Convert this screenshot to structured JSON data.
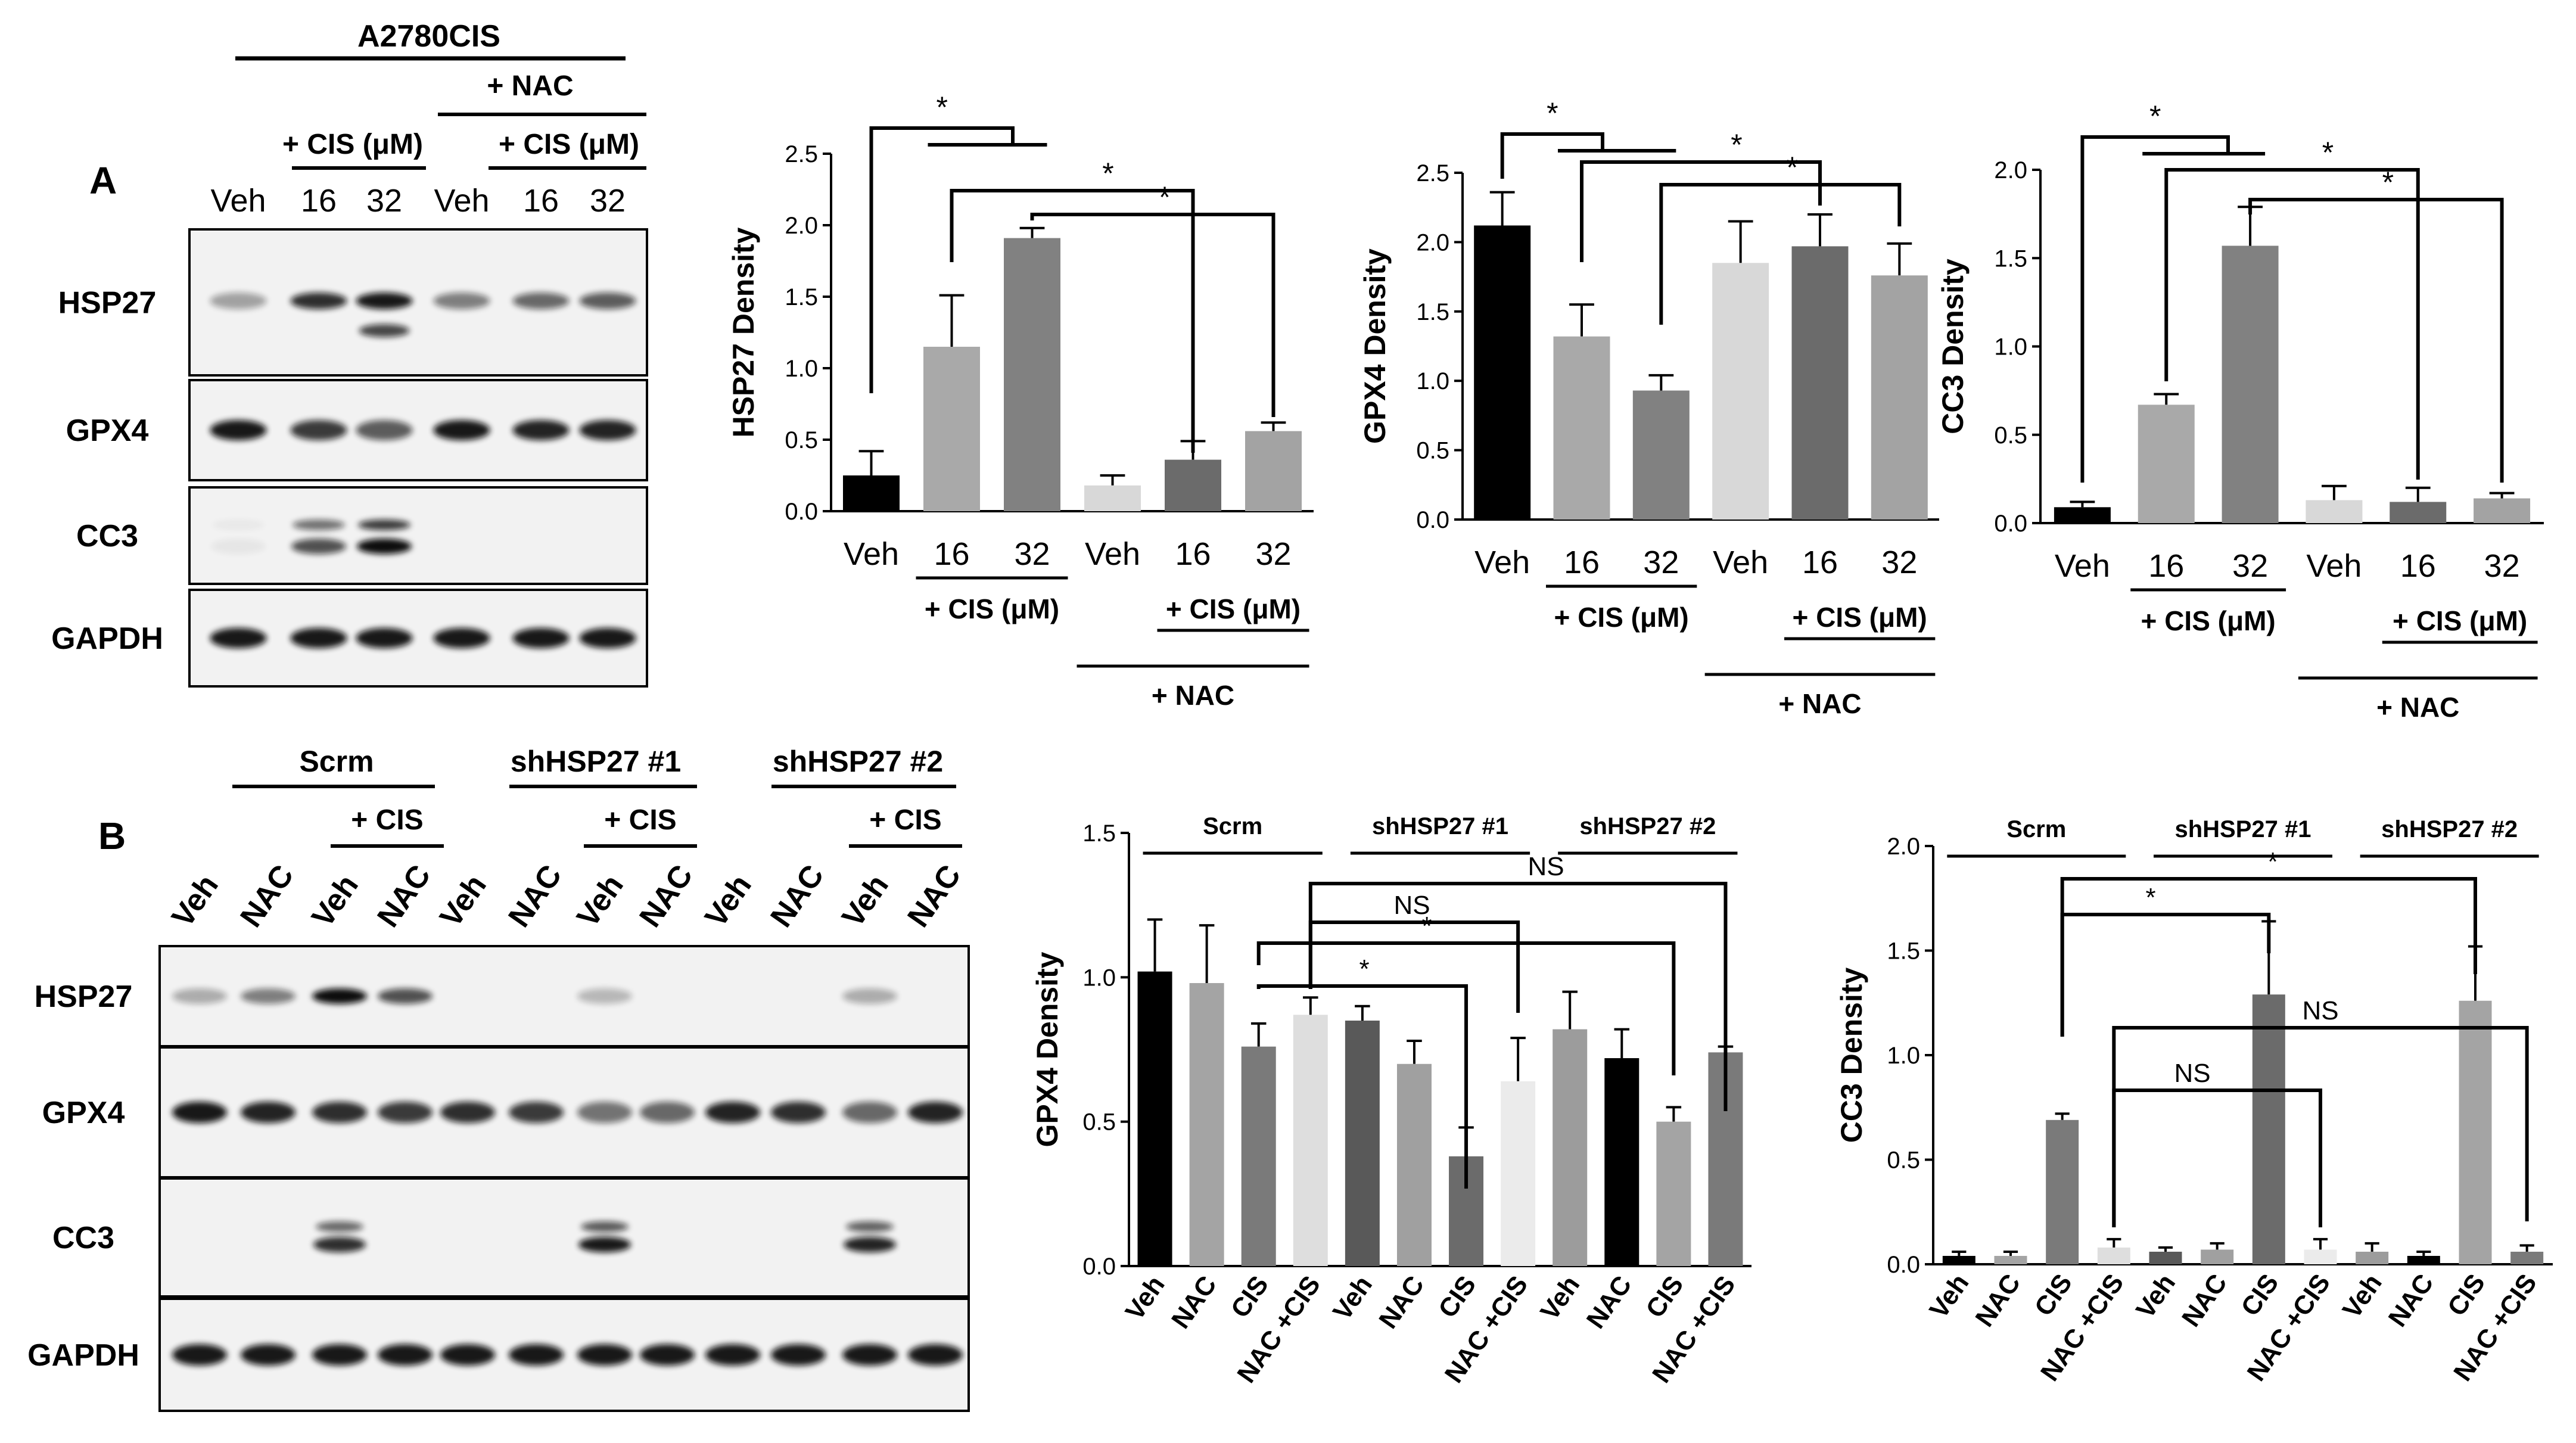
{
  "panel_labels": {
    "a": "A",
    "b": "B"
  },
  "blot_a": {
    "cell_line": "A2780CIS",
    "nac_label": "+ NAC",
    "cis_label": "+ CIS (μM)",
    "lanes": [
      "Veh",
      "16",
      "32",
      "Veh",
      "16",
      "32"
    ],
    "proteins": [
      "HSP27",
      "GPX4",
      "CC3",
      "GAPDH"
    ]
  },
  "blot_b": {
    "groups": [
      "Scrm",
      "shHSP27 #1",
      "shHSP27 #2"
    ],
    "cis_label": "+ CIS",
    "lanes": [
      "Veh",
      "NAC",
      "Veh",
      "NAC",
      "Veh",
      "NAC",
      "Veh",
      "NAC",
      "Veh",
      "NAC",
      "Veh",
      "NAC"
    ],
    "proteins": [
      "HSP27",
      "GPX4",
      "CC3",
      "GAPDH"
    ]
  },
  "chart_data": [
    {
      "type": "bar",
      "title": "",
      "xlabel": "",
      "ylabel": "HSP27 Density",
      "ylim": [
        0,
        2.5
      ],
      "yticks": [
        "0.0",
        "0.5",
        "1.0",
        "1.5",
        "2.0",
        "2.5"
      ],
      "categories": [
        "Veh",
        "16",
        "32",
        "Veh",
        "16",
        "32"
      ],
      "values": [
        0.25,
        1.15,
        1.91,
        0.18,
        0.36,
        0.56
      ],
      "errors": [
        0.17,
        0.36,
        0.07,
        0.07,
        0.13,
        0.06
      ],
      "colors": [
        "#000000",
        "#a9a9a9",
        "#818181",
        "#d8d8d8",
        "#6b6b6b",
        "#a3a3a3"
      ],
      "group_labels": {
        "cis": "+ CIS (μM)",
        "cis2": "+ CIS (μM)",
        "nac": "+ NAC"
      },
      "significance": [
        "*",
        "*",
        "*"
      ]
    },
    {
      "type": "bar",
      "title": "",
      "xlabel": "",
      "ylabel": "GPX4 Density",
      "ylim": [
        0,
        2.5
      ],
      "yticks": [
        "0.0",
        "0.5",
        "1.0",
        "1.5",
        "2.0",
        "2.5"
      ],
      "categories": [
        "Veh",
        "16",
        "32",
        "Veh",
        "16",
        "32"
      ],
      "values": [
        2.12,
        1.32,
        0.93,
        1.85,
        1.97,
        1.76
      ],
      "errors": [
        0.24,
        0.23,
        0.11,
        0.3,
        0.23,
        0.23
      ],
      "colors": [
        "#000000",
        "#a9a9a9",
        "#818181",
        "#d8d8d8",
        "#6b6b6b",
        "#a3a3a3"
      ],
      "group_labels": {
        "cis": "+ CIS (μM)",
        "cis2": "+ CIS (μM)",
        "nac": "+ NAC"
      },
      "significance": [
        "*",
        "*",
        "*"
      ]
    },
    {
      "type": "bar",
      "title": "",
      "xlabel": "",
      "ylabel": "CC3 Density",
      "ylim": [
        0,
        2.0
      ],
      "yticks": [
        "0.0",
        "0.5",
        "1.0",
        "1.5",
        "2.0"
      ],
      "categories": [
        "Veh",
        "16",
        "32",
        "Veh",
        "16",
        "32"
      ],
      "values": [
        0.09,
        0.67,
        1.57,
        0.13,
        0.12,
        0.14
      ],
      "errors": [
        0.03,
        0.06,
        0.22,
        0.08,
        0.08,
        0.03
      ],
      "colors": [
        "#000000",
        "#a9a9a9",
        "#818181",
        "#d8d8d8",
        "#6b6b6b",
        "#a3a3a3"
      ],
      "group_labels": {
        "cis": "+ CIS (μM)",
        "cis2": "+ CIS (μM)",
        "nac": "+ NAC"
      },
      "significance": [
        "*",
        "*",
        "*"
      ]
    },
    {
      "type": "bar",
      "title": "",
      "xlabel": "",
      "ylabel": "GPX4 Density",
      "ylim": [
        0,
        1.5
      ],
      "yticks": [
        "0.0",
        "0.5",
        "1.0",
        "1.5"
      ],
      "categories": [
        "Veh",
        "NAC",
        "CIS",
        "NAC +CIS",
        "Veh",
        "NAC",
        "CIS",
        "NAC +CIS",
        "Veh",
        "NAC",
        "CIS",
        "NAC +CIS"
      ],
      "groups": [
        "Scrm",
        "shHSP27 #1",
        "shHSP27 #2"
      ],
      "values": [
        1.02,
        0.98,
        0.76,
        0.87,
        0.85,
        0.7,
        0.38,
        0.64,
        0.82,
        0.72,
        0.5,
        0.74
      ],
      "errors": [
        0.18,
        0.2,
        0.08,
        0.06,
        0.05,
        0.08,
        0.1,
        0.15,
        0.13,
        0.1,
        0.05,
        0.02
      ],
      "colors": [
        "#000000",
        "#a4a4a4",
        "#7a7a7a",
        "#dedede",
        "#595959",
        "#a0a0a0",
        "#6b6b6b",
        "#ebebeb",
        "#9c9c9c",
        "#000000",
        "#a4a4a4",
        "#7a7a7a"
      ],
      "significance": [
        "*",
        "*",
        "NS",
        "NS"
      ]
    },
    {
      "type": "bar",
      "title": "",
      "xlabel": "",
      "ylabel": "CC3 Density",
      "ylim": [
        0,
        2.0
      ],
      "yticks": [
        "0.0",
        "0.5",
        "1.0",
        "1.5",
        "2.0"
      ],
      "categories": [
        "Veh",
        "NAC",
        "CIS",
        "NAC +CIS",
        "Veh",
        "NAC",
        "CIS",
        "NAC +CIS",
        "Veh",
        "NAC",
        "CIS",
        "NAC +CIS"
      ],
      "groups": [
        "Scrm",
        "shHSP27 #1",
        "shHSP27 #2"
      ],
      "values": [
        0.04,
        0.04,
        0.69,
        0.08,
        0.06,
        0.07,
        1.29,
        0.07,
        0.06,
        0.04,
        1.26,
        0.06
      ],
      "errors": [
        0.02,
        0.02,
        0.03,
        0.04,
        0.02,
        0.03,
        0.35,
        0.05,
        0.04,
        0.02,
        0.26,
        0.03
      ],
      "colors": [
        "#000000",
        "#a4a4a4",
        "#7a7a7a",
        "#dedede",
        "#595959",
        "#a0a0a0",
        "#6b6b6b",
        "#ebebeb",
        "#9c9c9c",
        "#000000",
        "#a4a4a4",
        "#7a7a7a"
      ],
      "significance": [
        "*",
        "*",
        "NS",
        "NS"
      ]
    }
  ]
}
